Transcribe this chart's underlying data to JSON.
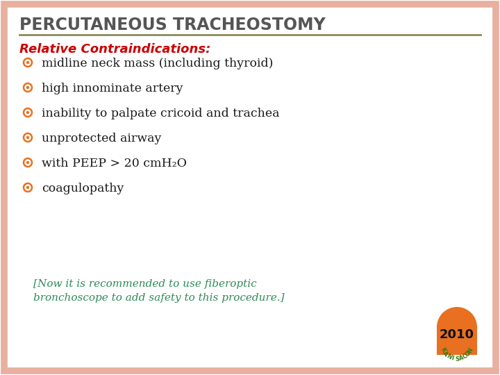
{
  "title": "PERCUTANEOUS TRACHEOSTOMY",
  "title_color": "#555555",
  "title_fontsize": 17,
  "bg_color": "#ffffff",
  "border_color": "#e8b0a0",
  "line_color": "#8b8b5a",
  "heading": "Relative Contraindications:",
  "heading_color": "#cc0000",
  "heading_fontsize": 13,
  "bullet_color": "#e87020",
  "bullet_items": [
    "midline neck mass (including thyroid)",
    "high innominate artery",
    "inability to palpate cricoid and trachea",
    "unprotected airway",
    "with PEEP > 20 cmH₂O",
    "coagulopathy"
  ],
  "bullet_fontsize": 12.5,
  "bullet_text_color": "#1a1a1a",
  "note_color": "#2e8b57",
  "note_fontsize": 11,
  "note_line1": "[Now it is recommended to use fiberoptic",
  "note_line2": "bronchoscope to add safety to this procedure.]",
  "badge_color": "#e87020",
  "badge_text": "2010",
  "badge_subtext": "KANISACON",
  "badge_fontsize": 11,
  "badge_green": "#3a7a10"
}
